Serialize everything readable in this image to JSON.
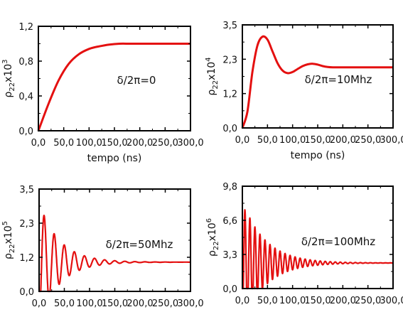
{
  "chart_data": [
    {
      "type": "line",
      "annotation": "δ/2π=0",
      "ylabel": "ρ₂₂x10³",
      "ylabel_base": "ρ",
      "ylabel_sub": "22",
      "ylabel_mid": "x10",
      "ylabel_sup": "3",
      "xlabel": "tempo (ns)",
      "xlim": [
        0,
        300
      ],
      "ylim": [
        0,
        1.2
      ],
      "xticks": [
        "0,0",
        "50,0",
        "100,0",
        "150,0",
        "200,0",
        "250,0",
        "300,0"
      ],
      "yticks": [
        "0,0",
        "0,4",
        "0,8",
        "1,2"
      ],
      "x": [
        0,
        20,
        40,
        60,
        80,
        100,
        120,
        140,
        160,
        180,
        200,
        220,
        240,
        260,
        280,
        300
      ],
      "y": [
        0,
        0.31,
        0.58,
        0.77,
        0.88,
        0.94,
        0.97,
        0.99,
        1.0,
        1.0,
        1.0,
        1.0,
        1.0,
        1.0,
        1.0,
        1.0
      ],
      "color": "#e41010"
    },
    {
      "type": "line",
      "annotation": "δ/2π=10Mhz",
      "ylabel": "ρ₂₂x10⁴",
      "ylabel_base": "ρ",
      "ylabel_sub": "22",
      "ylabel_mid": "x10",
      "ylabel_sup": "4",
      "xlabel": "tempo (ns)",
      "xlim": [
        0,
        300
      ],
      "ylim": [
        0,
        3.5
      ],
      "xticks": [
        "0,0",
        "50,0",
        "100,0",
        "150,0",
        "200,0",
        "250,0",
        "300,0"
      ],
      "yticks": [
        "0,0",
        "1,2",
        "2,3",
        "3,5"
      ],
      "x": [
        0,
        10,
        20,
        30,
        40,
        50,
        60,
        70,
        80,
        90,
        100,
        110,
        120,
        130,
        140,
        150,
        160,
        170,
        180,
        200,
        220,
        240,
        260,
        280,
        300
      ],
      "y": [
        0,
        0.55,
        1.9,
        2.8,
        3.1,
        3.0,
        2.6,
        2.2,
        1.95,
        1.86,
        1.9,
        2.0,
        2.1,
        2.16,
        2.18,
        2.15,
        2.1,
        2.07,
        2.06,
        2.06,
        2.06,
        2.06,
        2.06,
        2.06,
        2.06
      ],
      "color": "#e41010"
    },
    {
      "type": "line",
      "annotation": "δ/2π=50Mhz",
      "ylabel": "ρ₂₂x10⁵",
      "ylabel_base": "ρ",
      "ylabel_sub": "22",
      "ylabel_mid": "x10",
      "ylabel_sup": "5",
      "xlabel": "",
      "xlim": [
        0,
        300
      ],
      "ylim": [
        0,
        3.5
      ],
      "xticks": [
        "0,0",
        "50,0",
        "100,0",
        "150,0",
        "200,0",
        "250,0",
        "300,0"
      ],
      "yticks": [
        "0,0",
        "1,2",
        "2,3",
        "3,5"
      ],
      "oscillation": {
        "mean": 1.0,
        "amplitude": 2.05,
        "period_ns": 20,
        "decay_ns": 40,
        "phase_ns": 5
      },
      "color": "#e41010"
    },
    {
      "type": "line",
      "annotation": "δ/2π=100Mhz",
      "ylabel": "ρ₂₂x10⁶",
      "ylabel_base": "ρ",
      "ylabel_sub": "22",
      "ylabel_mid": "x10",
      "ylabel_sup": "6",
      "xlabel": "",
      "xlim": [
        0,
        300
      ],
      "ylim": [
        0,
        9.8
      ],
      "xticks": [
        "0,0",
        "50,0",
        "100,0",
        "150,0",
        "200,0",
        "250,0",
        "300,0"
      ],
      "yticks": [
        "0,0",
        "3,3",
        "6,6",
        "9,8"
      ],
      "oscillation": {
        "mean": 2.45,
        "amplitude": 6.0,
        "period_ns": 10,
        "decay_ns": 45,
        "phase_ns": 2.5
      },
      "color": "#e41010"
    }
  ]
}
